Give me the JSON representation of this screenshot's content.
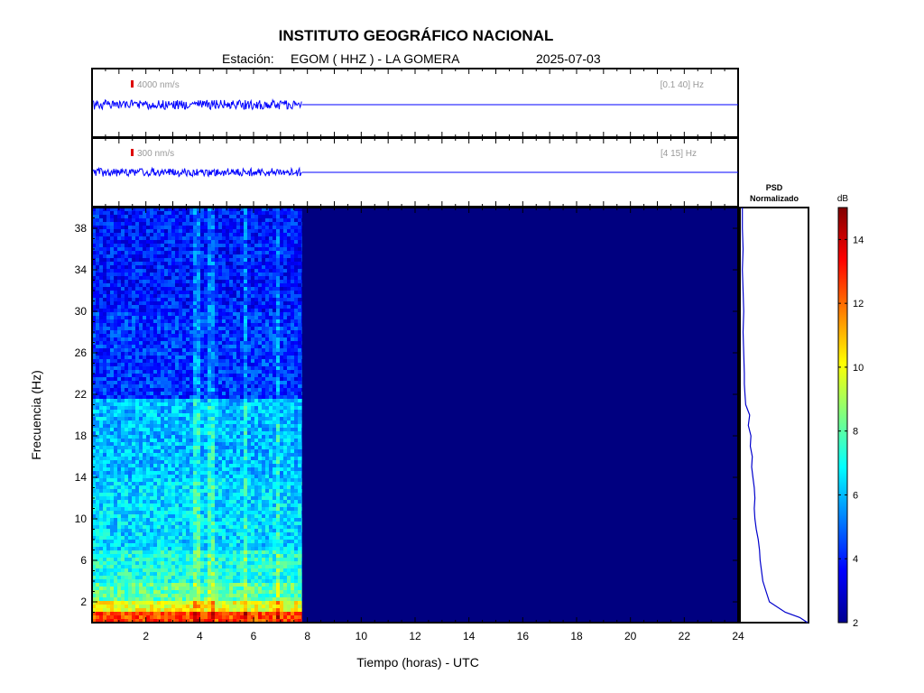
{
  "header": {
    "title": "INSTITUTO GEOGRÁFICO NACIONAL",
    "station_label": "Estación:",
    "station": "EGOM ( HHZ ) - LA GOMERA",
    "date": "2025-07-03"
  },
  "colors": {
    "background": "#ffffff",
    "trace": "#0000ff",
    "scale_marker": "#dd0000",
    "spectrogram_fill": "#000080",
    "frame": "#000000",
    "info_text": "#999999"
  },
  "chart_data": [
    {
      "type": "line",
      "name": "trace-broadband",
      "scale_label": "4000 nm/s",
      "band_label": "[0.1 40] Hz",
      "xlim": [
        0,
        24
      ],
      "data_end_hour": 7.8,
      "amplitude_relative": 0.07
    },
    {
      "type": "line",
      "name": "trace-filtered",
      "scale_label": "300 nm/s",
      "band_label": "[4 15] Hz",
      "xlim": [
        0,
        24
      ],
      "data_end_hour": 7.8,
      "amplitude_relative": 0.06
    },
    {
      "type": "heatmap",
      "xlabel": "Tiempo (horas) - UTC",
      "ylabel": "Frecuencia  (Hz)",
      "xlim": [
        0,
        24
      ],
      "ylim": [
        0,
        40
      ],
      "xticks": [
        2,
        4,
        6,
        8,
        10,
        12,
        14,
        16,
        18,
        20,
        22,
        24
      ],
      "yticks": [
        2,
        6,
        10,
        14,
        18,
        22,
        26,
        30,
        34,
        38
      ],
      "data_end_hour": 7.8,
      "colorscale": "jet",
      "frequency_bands_db": [
        {
          "f_from": 0,
          "f_to": 1,
          "db": 12.5
        },
        {
          "f_from": 1,
          "f_to": 2,
          "db": 10.0
        },
        {
          "f_from": 2,
          "f_to": 4,
          "db": 8.0
        },
        {
          "f_from": 4,
          "f_to": 7,
          "db": 7.2
        },
        {
          "f_from": 7,
          "f_to": 14,
          "db": 6.4
        },
        {
          "f_from": 14,
          "f_to": 21.5,
          "db": 6.0
        },
        {
          "f_from": 21.5,
          "f_to": 30,
          "db": 4.3
        },
        {
          "f_from": 30,
          "f_to": 40,
          "db": 3.9
        }
      ],
      "empty_db": 2.0
    },
    {
      "type": "line",
      "title": "PSD\nNormalizado",
      "orientation": "vertical",
      "freq": [
        0,
        0.5,
        1,
        2,
        3,
        4,
        5,
        6,
        7,
        8,
        9,
        10,
        11,
        12,
        13,
        14,
        15,
        16,
        17,
        18,
        19,
        20,
        21,
        22,
        23,
        24,
        26,
        28,
        30,
        32,
        34,
        36,
        38,
        40
      ],
      "value": [
        1.0,
        0.88,
        0.66,
        0.42,
        0.37,
        0.32,
        0.3,
        0.28,
        0.27,
        0.25,
        0.22,
        0.2,
        0.19,
        0.2,
        0.19,
        0.17,
        0.15,
        0.16,
        0.13,
        0.14,
        0.1,
        0.12,
        0.06,
        0.05,
        0.04,
        0.04,
        0.03,
        0.02,
        0.03,
        0.02,
        0.01,
        0.02,
        0.01,
        0.01
      ],
      "xlim": [
        0,
        1
      ]
    },
    {
      "type": "colorbar",
      "label": "dB",
      "ticks": [
        2,
        4,
        6,
        8,
        10,
        12,
        14
      ],
      "range": [
        2,
        15
      ]
    }
  ]
}
